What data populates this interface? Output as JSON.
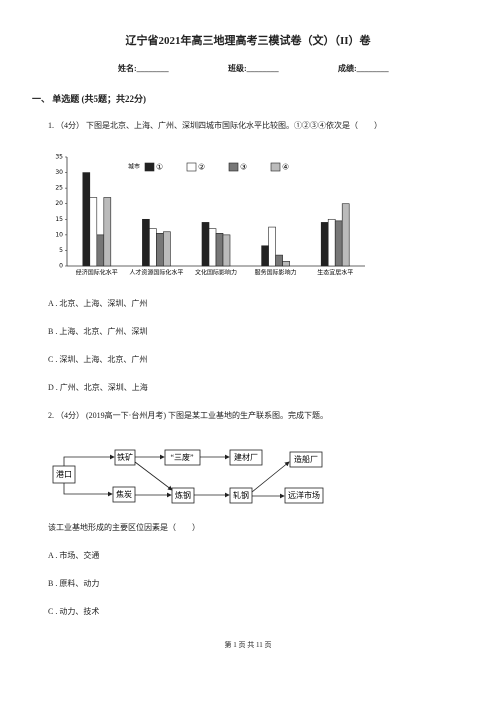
{
  "header": {
    "title": "辽宁省2021年高三地理高考三模试卷（文）（II）卷",
    "fields": [
      "姓名:________",
      "班级:________",
      "成绩:________"
    ]
  },
  "section": "一、 单选题 (共5题；共22分)",
  "questions": [
    {
      "stem": "1. （4分） 下图是北京、上海、广州、深圳四城市国际化水平比较图。①②③④依次是（　　）",
      "chart_data": {
        "type": "bar",
        "legend_title": "城市",
        "categories": [
          "经济国际化水平",
          "人才资源国际化水平",
          "文化国际影响力",
          "服务国际影响力",
          "生态宜居水平"
        ],
        "series": [
          {
            "name": "①",
            "color": "#222222",
            "values": [
              30,
              15,
              14,
              6.5,
              14
            ]
          },
          {
            "name": "②",
            "color": "#ffffff",
            "values": [
              22,
              12,
              12,
              12.5,
              15
            ]
          },
          {
            "name": "③",
            "color": "#777777",
            "values": [
              10,
              10.5,
              10.5,
              3.5,
              14.5
            ]
          },
          {
            "name": "④",
            "color": "#bbbbbb",
            "values": [
              22,
              11,
              10,
              1.5,
              20
            ]
          }
        ],
        "ylim": [
          0,
          35
        ],
        "yticks": [
          0,
          5,
          10,
          15,
          20,
          25,
          30,
          35
        ]
      },
      "options": [
        "A . 北京、上海、深圳、广州",
        "B . 上海、北京、广州、深圳",
        "C . 深圳、上海、北京、广州",
        "D . 广州、北京、深圳、上海"
      ]
    },
    {
      "stem": "2. （4分） (2019高一下·台州月考) 下图是某工业基地的生产联系图。完成下题。",
      "diagram": {
        "nodes": [
          "港口",
          "铁矿",
          "“三废”",
          "建材厂",
          "造船厂",
          "焦炭",
          "炼钢",
          "轧钢",
          "远洋市场"
        ]
      },
      "sub": "该工业基地形成的主要区位因素是（　　）",
      "options": [
        "A . 市场、交通",
        "B . 原料、动力",
        "C . 动力、技术"
      ]
    }
  ],
  "footer": "第 1 页 共 11 页"
}
